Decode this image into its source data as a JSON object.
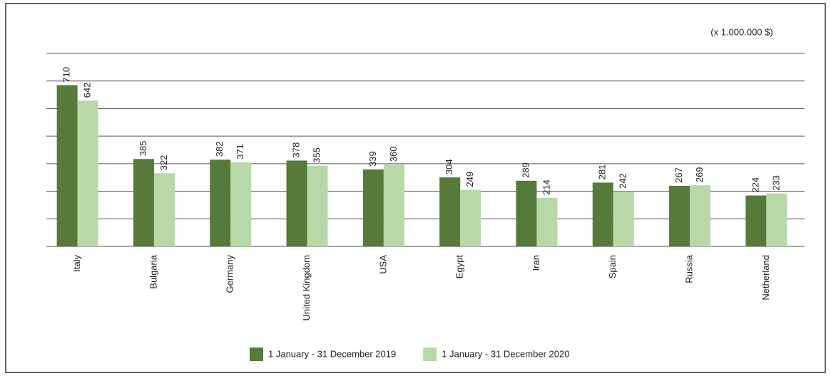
{
  "chart_data": {
    "type": "bar",
    "note": "(x 1.000.000 $)",
    "categories": [
      "Italy",
      "Bulgaria",
      "Germany",
      "United Kingdom",
      "USA",
      "Egypt",
      "Iran",
      "Spain",
      "Russia",
      "Netherland"
    ],
    "series": [
      {
        "name": "1 January - 31 December 2019",
        "color": "#557a3a",
        "values": [
          710,
          385,
          382,
          378,
          339,
          304,
          289,
          281,
          267,
          224
        ]
      },
      {
        "name": "1 January - 31 December 2020",
        "color": "#b8d8a8",
        "values": [
          642,
          322,
          371,
          355,
          360,
          249,
          214,
          242,
          269,
          233
        ]
      }
    ],
    "ylim": [
      0,
      850
    ]
  }
}
